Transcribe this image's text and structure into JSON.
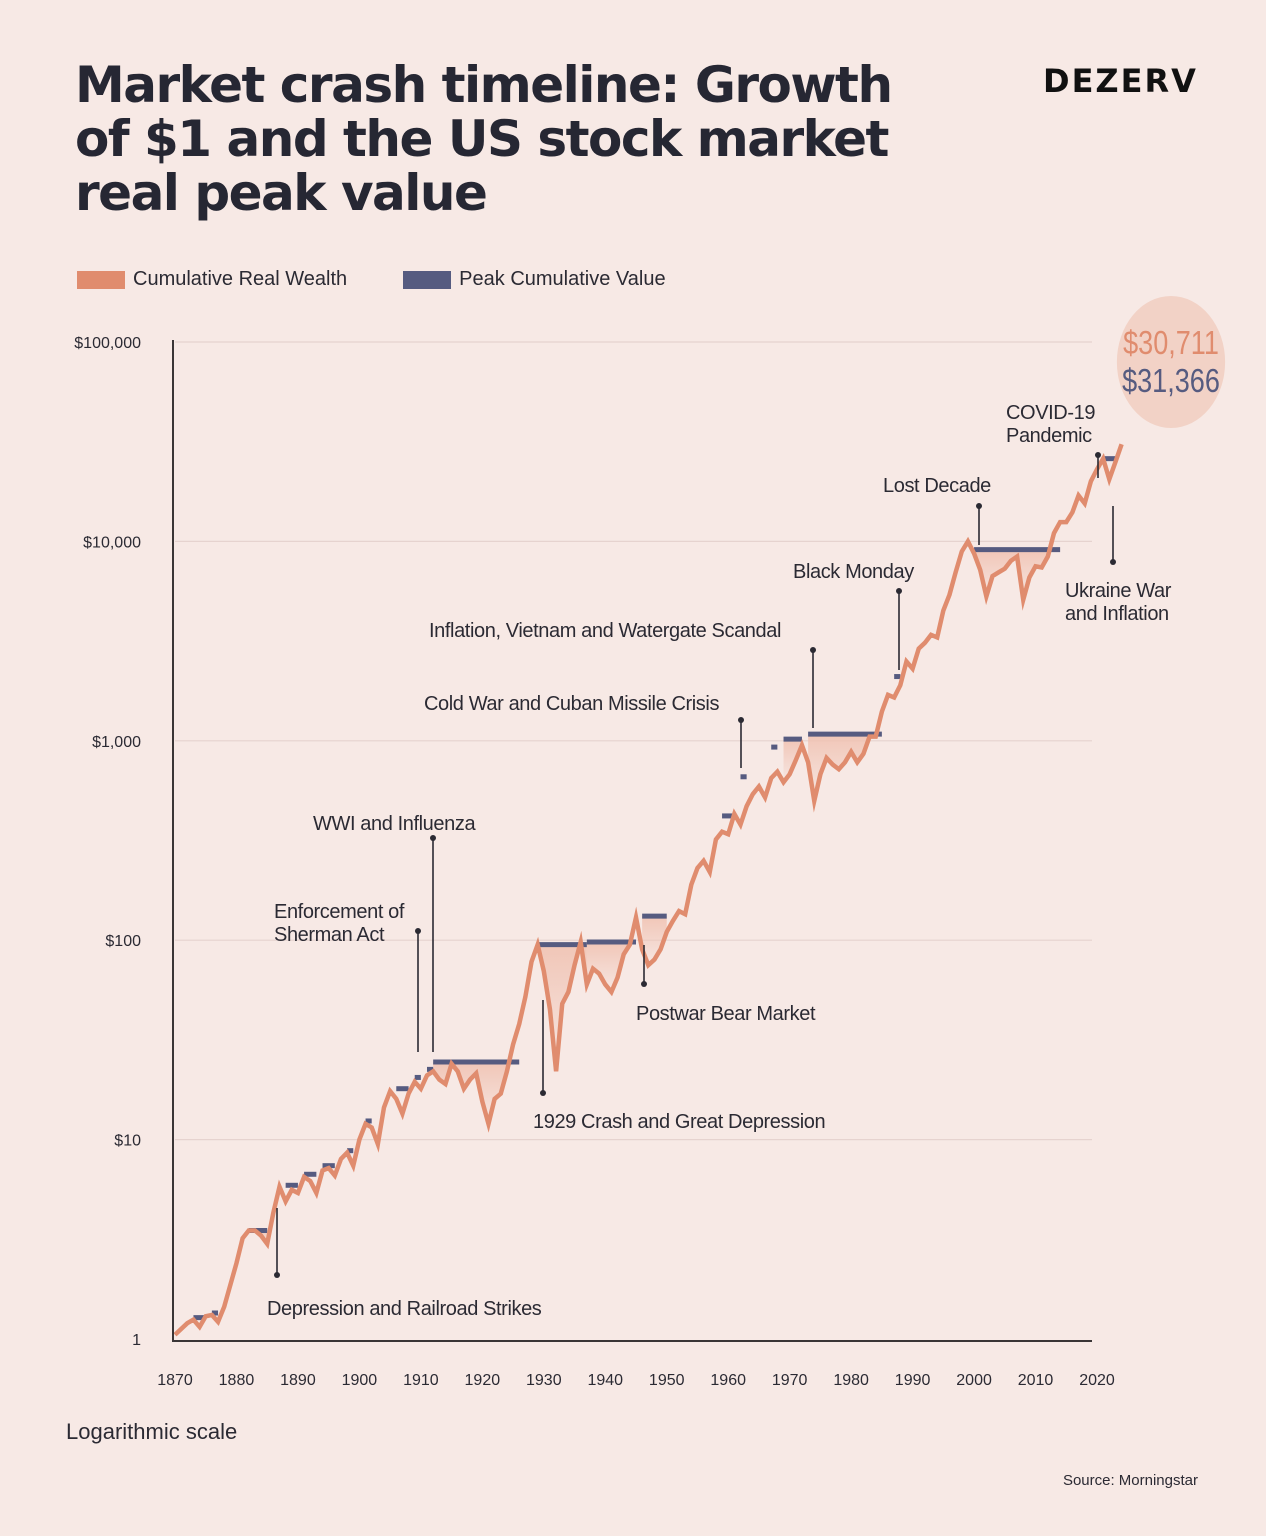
{
  "header": {
    "title": "Market crash timeline: Growth of $1 and the US stock market real peak value",
    "brand": "DEZERV"
  },
  "colors": {
    "background": "#f7e9e5",
    "wealth": "#e08c6e",
    "peak": "#565b80",
    "drawdown_fill": "#f0c2b2",
    "axis": "#3a3536",
    "grid": "#e6d3cf",
    "text": "#2b2a33"
  },
  "callout": {
    "wealth_value": "$30,711",
    "peak_value": "$31,366"
  },
  "footer": {
    "scale_note": "Logarithmic scale",
    "source": "Source: Morningstar"
  },
  "chart_data": {
    "type": "line",
    "title": "Market crash timeline: Growth of $1 and the US stock market real peak value",
    "xlabel": "",
    "ylabel": "",
    "y_scale": "log",
    "xlim": [
      1870,
      2024
    ],
    "ylim": [
      1,
      100000
    ],
    "grid": true,
    "legend_position": "top-left",
    "x_ticks": [
      1870,
      1880,
      1890,
      1900,
      1910,
      1920,
      1930,
      1940,
      1950,
      1960,
      1970,
      1980,
      1990,
      2000,
      2010,
      2020
    ],
    "x_tick_labels": [
      "1870",
      "1880",
      "1890",
      "1900",
      "1910",
      "1920",
      "1930",
      "1940",
      "1950",
      "1960",
      "1970",
      "1980",
      "1990",
      "2000",
      "2010",
      "2020"
    ],
    "y_ticks": [
      1,
      10,
      100,
      1000,
      10000,
      100000
    ],
    "y_tick_labels": [
      "1",
      "$10",
      "$100",
      "$1,000",
      "$10,000",
      "$100,000"
    ],
    "series": [
      {
        "name": "Cumulative Real Wealth",
        "color": "#e08c6e",
        "x": [
          1870,
          1872,
          1873,
          1874,
          1875,
          1876,
          1877,
          1878,
          1880,
          1881,
          1882,
          1883,
          1884,
          1885,
          1886,
          1887,
          1888,
          1889,
          1890,
          1891,
          1892,
          1893,
          1894,
          1895,
          1896,
          1897,
          1898,
          1899,
          1900,
          1901,
          1902,
          1903,
          1904,
          1905,
          1906,
          1907,
          1908,
          1909,
          1910,
          1911,
          1912,
          1913,
          1914,
          1915,
          1916,
          1917,
          1918,
          1919,
          1920,
          1921,
          1922,
          1923,
          1924,
          1925,
          1926,
          1927,
          1928,
          1929,
          1930,
          1931,
          1932,
          1933,
          1934,
          1935,
          1936,
          1937,
          1938,
          1939,
          1940,
          1941,
          1942,
          1943,
          1944,
          1945,
          1946,
          1947,
          1948,
          1949,
          1950,
          1951,
          1952,
          1953,
          1954,
          1955,
          1956,
          1957,
          1958,
          1959,
          1960,
          1961,
          1962,
          1963,
          1964,
          1965,
          1966,
          1967,
          1968,
          1969,
          1970,
          1971,
          1972,
          1973,
          1974,
          1975,
          1976,
          1977,
          1978,
          1979,
          1980,
          1981,
          1982,
          1983,
          1984,
          1985,
          1986,
          1987,
          1988,
          1989,
          1990,
          1991,
          1992,
          1993,
          1994,
          1995,
          1996,
          1997,
          1998,
          1999,
          2000,
          2001,
          2002,
          2003,
          2004,
          2005,
          2006,
          2007,
          2008,
          2009,
          2010,
          2011,
          2012,
          2013,
          2014,
          2015,
          2016,
          2017,
          2018,
          2019,
          2020,
          2021,
          2022,
          2023,
          2024
        ],
        "values": [
          1.05,
          1.2,
          1.25,
          1.15,
          1.3,
          1.32,
          1.22,
          1.45,
          2.4,
          3.2,
          3.5,
          3.5,
          3.3,
          3.0,
          4.3,
          5.8,
          4.9,
          5.6,
          5.4,
          6.5,
          6.2,
          5.4,
          7.0,
          7.2,
          6.6,
          8.0,
          8.6,
          7.4,
          10.0,
          12.0,
          11.5,
          9.5,
          14.5,
          17.5,
          16.0,
          13.5,
          17.0,
          19.5,
          18.0,
          21.0,
          22.0,
          20.0,
          19.0,
          24.0,
          22.0,
          18.0,
          20.0,
          21.5,
          15.5,
          12.0,
          16.0,
          17.0,
          22.0,
          30.0,
          38.0,
          52.0,
          78.0,
          95.0,
          70.0,
          45.0,
          22.0,
          48.0,
          55.0,
          75.0,
          98.0,
          60.0,
          72.0,
          68.0,
          60.0,
          55.0,
          65.0,
          85.0,
          95.0,
          130.0,
          90.0,
          75.0,
          80.0,
          90.0,
          110.0,
          125.0,
          140.0,
          135.0,
          190.0,
          230.0,
          250.0,
          220.0,
          320.0,
          350.0,
          340.0,
          430.0,
          380.0,
          470.0,
          540.0,
          590.0,
          520.0,
          650.0,
          700.0,
          620.0,
          680.0,
          800.0,
          950.0,
          780.0,
          500.0,
          680.0,
          820.0,
          760.0,
          720.0,
          780.0,
          880.0,
          780.0,
          860.0,
          1050.0,
          1050.0,
          1400.0,
          1700.0,
          1650.0,
          1900.0,
          2500.0,
          2300.0,
          2900.0,
          3100.0,
          3400.0,
          3300.0,
          4500.0,
          5400.0,
          7000.0,
          8900.0,
          10000.0,
          8700.0,
          7200.0,
          5300.0,
          6700.0,
          7000.0,
          7300.0,
          8000.0,
          8400.0,
          5100.0,
          6600.0,
          7500.0,
          7400.0,
          8400.0,
          11000.0,
          12500.0,
          12500.0,
          14000.0,
          17000.0,
          15500.0,
          20000.0,
          23000.0,
          26000.0,
          20500.0,
          25000.0,
          30711.0
        ]
      },
      {
        "name": "Peak Cumulative Value",
        "color": "#565b80",
        "periods": [
          {
            "start": 1873,
            "end": 1875,
            "value": 1.28
          },
          {
            "start": 1876,
            "end": 1877,
            "value": 1.35
          },
          {
            "start": 1882,
            "end": 1885,
            "value": 3.5
          },
          {
            "start": 1888,
            "end": 1890,
            "value": 5.9
          },
          {
            "start": 1891,
            "end": 1893,
            "value": 6.7
          },
          {
            "start": 1894,
            "end": 1896,
            "value": 7.4
          },
          {
            "start": 1898,
            "end": 1899,
            "value": 8.8
          },
          {
            "start": 1901,
            "end": 1902,
            "value": 12.4
          },
          {
            "start": 1906,
            "end": 1908,
            "value": 18.0
          },
          {
            "start": 1909,
            "end": 1910,
            "value": 20.5
          },
          {
            "start": 1911,
            "end": 1912,
            "value": 22.5
          },
          {
            "start": 1912,
            "end": 1926,
            "value": 24.5
          },
          {
            "start": 1929,
            "end": 1937,
            "value": 95.0
          },
          {
            "start": 1937,
            "end": 1945,
            "value": 98.0
          },
          {
            "start": 1946,
            "end": 1950,
            "value": 132.0
          },
          {
            "start": 1959,
            "end": 1961,
            "value": 420.0
          },
          {
            "start": 1962,
            "end": 1963,
            "value": 660.0
          },
          {
            "start": 1967,
            "end": 1968,
            "value": 930.0
          },
          {
            "start": 1969,
            "end": 1972,
            "value": 1020.0
          },
          {
            "start": 1973,
            "end": 1985,
            "value": 1080.0
          },
          {
            "start": 1987,
            "end": 1988,
            "value": 2100.0
          },
          {
            "start": 2000,
            "end": 2014,
            "value": 9100.0
          },
          {
            "start": 2021,
            "end": 2023,
            "value": 26000.0
          }
        ]
      }
    ],
    "annotations": [
      {
        "label": "Depression and Railroad Strikes",
        "year": 1887,
        "direction": "below"
      },
      {
        "label": "Enforcement of Sherman Act",
        "year": 1910,
        "direction": "above"
      },
      {
        "label": "WWI and Influenza",
        "year": 1913,
        "direction": "above"
      },
      {
        "label": "1929 Crash and Great Depression",
        "year": 1930,
        "direction": "below"
      },
      {
        "label": "Postwar Bear Market",
        "year": 1947,
        "direction": "below"
      },
      {
        "label": "Cold War and Cuban Missile Crisis",
        "year": 1963,
        "direction": "above"
      },
      {
        "label": "Inflation, Vietnam and Watergate Scandal",
        "year": 1974,
        "direction": "above"
      },
      {
        "label": "Black Monday",
        "year": 1988,
        "direction": "above"
      },
      {
        "label": "Lost Decade",
        "year": 2001,
        "direction": "above"
      },
      {
        "label": "COVID-19 Pandemic",
        "year": 2020,
        "direction": "above"
      },
      {
        "label": "Ukraine War and Inflation",
        "year": 2022,
        "direction": "below"
      }
    ],
    "end_values": {
      "Cumulative Real Wealth": 30711,
      "Peak Cumulative Value": 31366
    }
  }
}
